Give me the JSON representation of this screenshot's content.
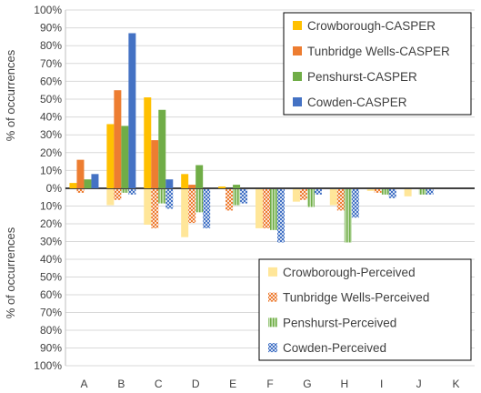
{
  "chart_data": {
    "type": "bar",
    "ylabel_top": "% of occurrences",
    "ylabel_bottom": "% of occurrences",
    "y_ticks_top": [
      "100%",
      "90%",
      "80%",
      "70%",
      "60%",
      "50%",
      "40%",
      "30%",
      "20%",
      "10%",
      "0%"
    ],
    "y_ticks_bottom": [
      "10%",
      "20%",
      "30%",
      "40%",
      "50%",
      "60%",
      "70%",
      "80%",
      "90%",
      "100%"
    ],
    "ylim_top": [
      0,
      100
    ],
    "ylim_bottom": [
      0,
      100
    ],
    "grid": true,
    "categories": [
      "A",
      "B",
      "C",
      "D",
      "E",
      "F",
      "G",
      "H",
      "I",
      "J",
      "K"
    ],
    "series_top": [
      {
        "name": "Crowborough-CASPER",
        "color": "#FFC000",
        "values": [
          3,
          36,
          51,
          8,
          1,
          0,
          0,
          0,
          0,
          0,
          0
        ]
      },
      {
        "name": "Tunbridge Wells-CASPER",
        "color": "#ED7D31",
        "values": [
          16,
          55,
          27,
          2,
          0,
          0,
          0,
          0,
          0,
          0,
          0
        ]
      },
      {
        "name": "Penshurst-CASPER",
        "color": "#70AD47",
        "values": [
          5,
          35,
          44,
          13,
          2,
          0,
          0,
          0,
          0,
          0,
          0
        ]
      },
      {
        "name": "Cowden-CASPER",
        "color": "#4472C4",
        "values": [
          8,
          87,
          5,
          0,
          0,
          0,
          0,
          0,
          0,
          0,
          0
        ]
      }
    ],
    "series_bottom": [
      {
        "name": "Crowborough-Perceived",
        "color": "#FFE699",
        "pattern": "solid",
        "values": [
          0,
          9,
          20,
          27,
          0,
          22,
          7,
          9,
          1,
          4,
          0
        ]
      },
      {
        "name": "Tunbridge Wells-Perceived",
        "color": "#ED7D31",
        "pattern": "checker",
        "values": [
          2,
          6,
          22,
          19,
          12,
          22,
          6,
          12,
          2,
          0,
          0
        ]
      },
      {
        "name": "Penshurst-Perceived",
        "color": "#70AD47",
        "pattern": "vertical",
        "values": [
          0,
          2,
          8,
          13,
          9,
          23,
          10,
          30,
          3,
          3,
          0
        ]
      },
      {
        "name": "Cowden-Perceived",
        "color": "#4472C4",
        "pattern": "checker",
        "values": [
          0,
          3,
          11,
          22,
          8,
          30,
          3,
          16,
          5,
          3,
          0
        ]
      }
    ],
    "legend_top_position": "top-right",
    "legend_bottom_position": "bottom-right"
  }
}
